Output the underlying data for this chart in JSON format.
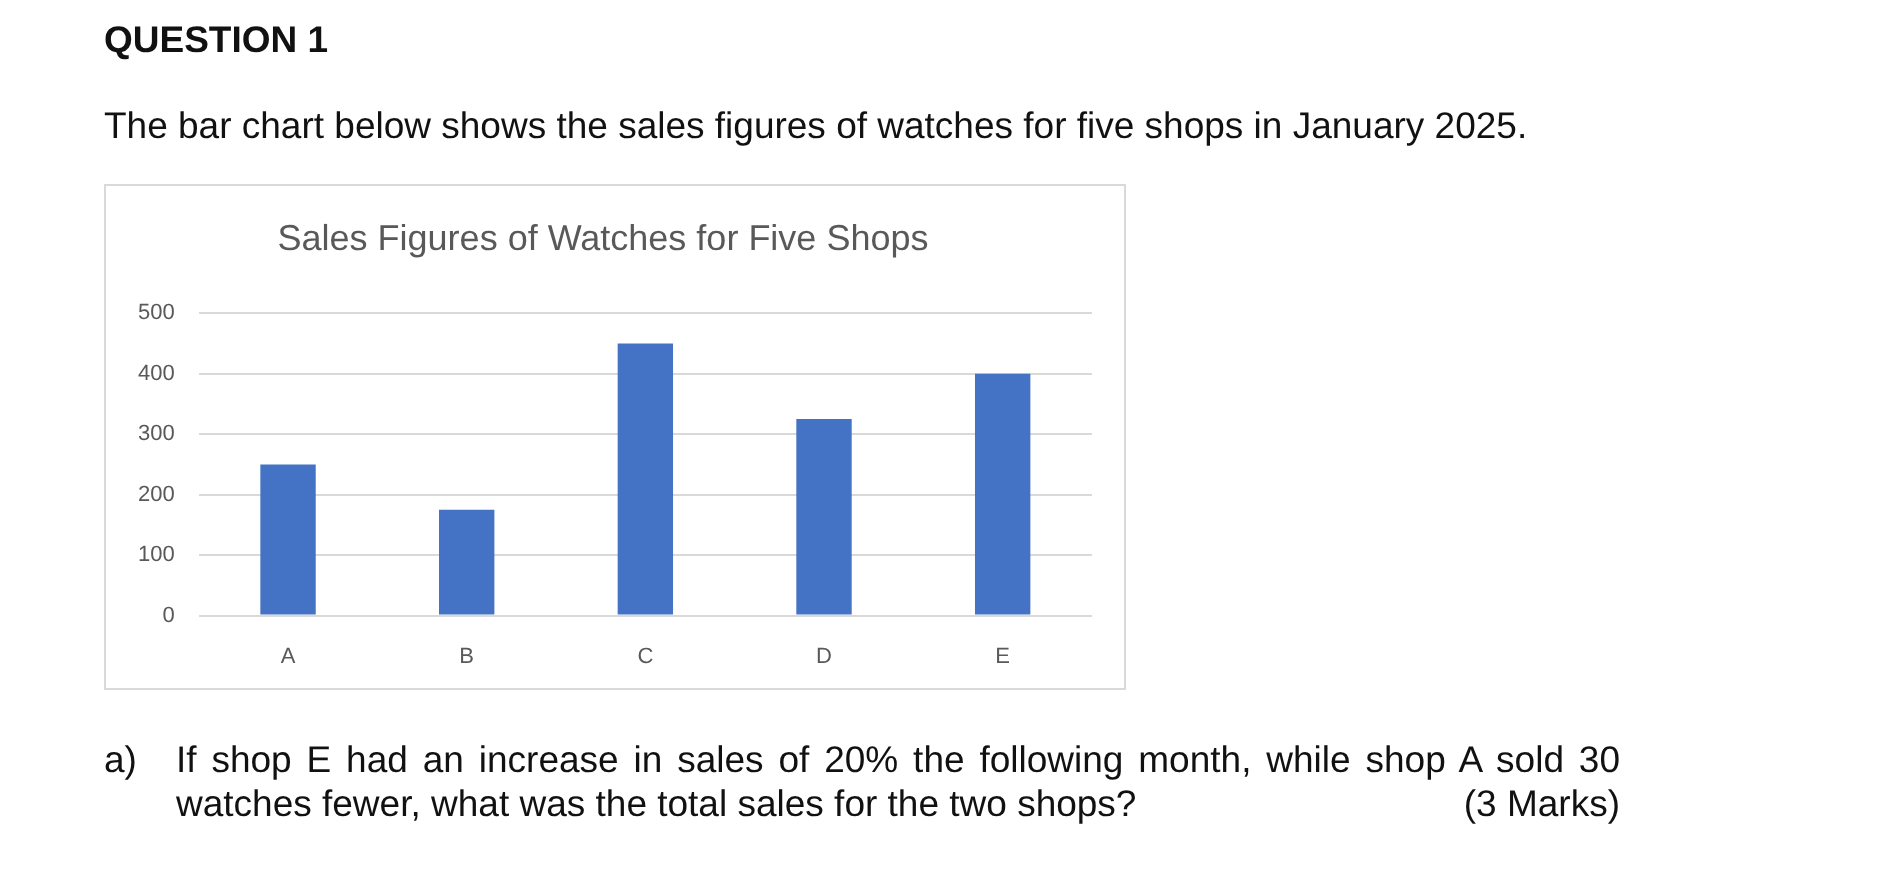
{
  "chart_data": {
    "type": "bar",
    "title": "Sales Figures of Watches for Five Shops",
    "categories": [
      "A",
      "B",
      "C",
      "D",
      "E"
    ],
    "values": [
      250,
      175,
      450,
      325,
      400
    ],
    "color": "#4472c4",
    "ylim": [
      0,
      500
    ],
    "yticks": [
      0,
      100,
      200,
      300,
      400,
      500
    ],
    "grid": "y",
    "annotations": [
      "QUESTION 1",
      "The bar chart below shows the sales figures of watches for five shops in January 2025.",
      "a)",
      "If shop E had an increase in sales of 20% the following month, while shop A sold 30 watches fewer, what was the total sales for the two shops?",
      "(3 Marks)"
    ]
  }
}
